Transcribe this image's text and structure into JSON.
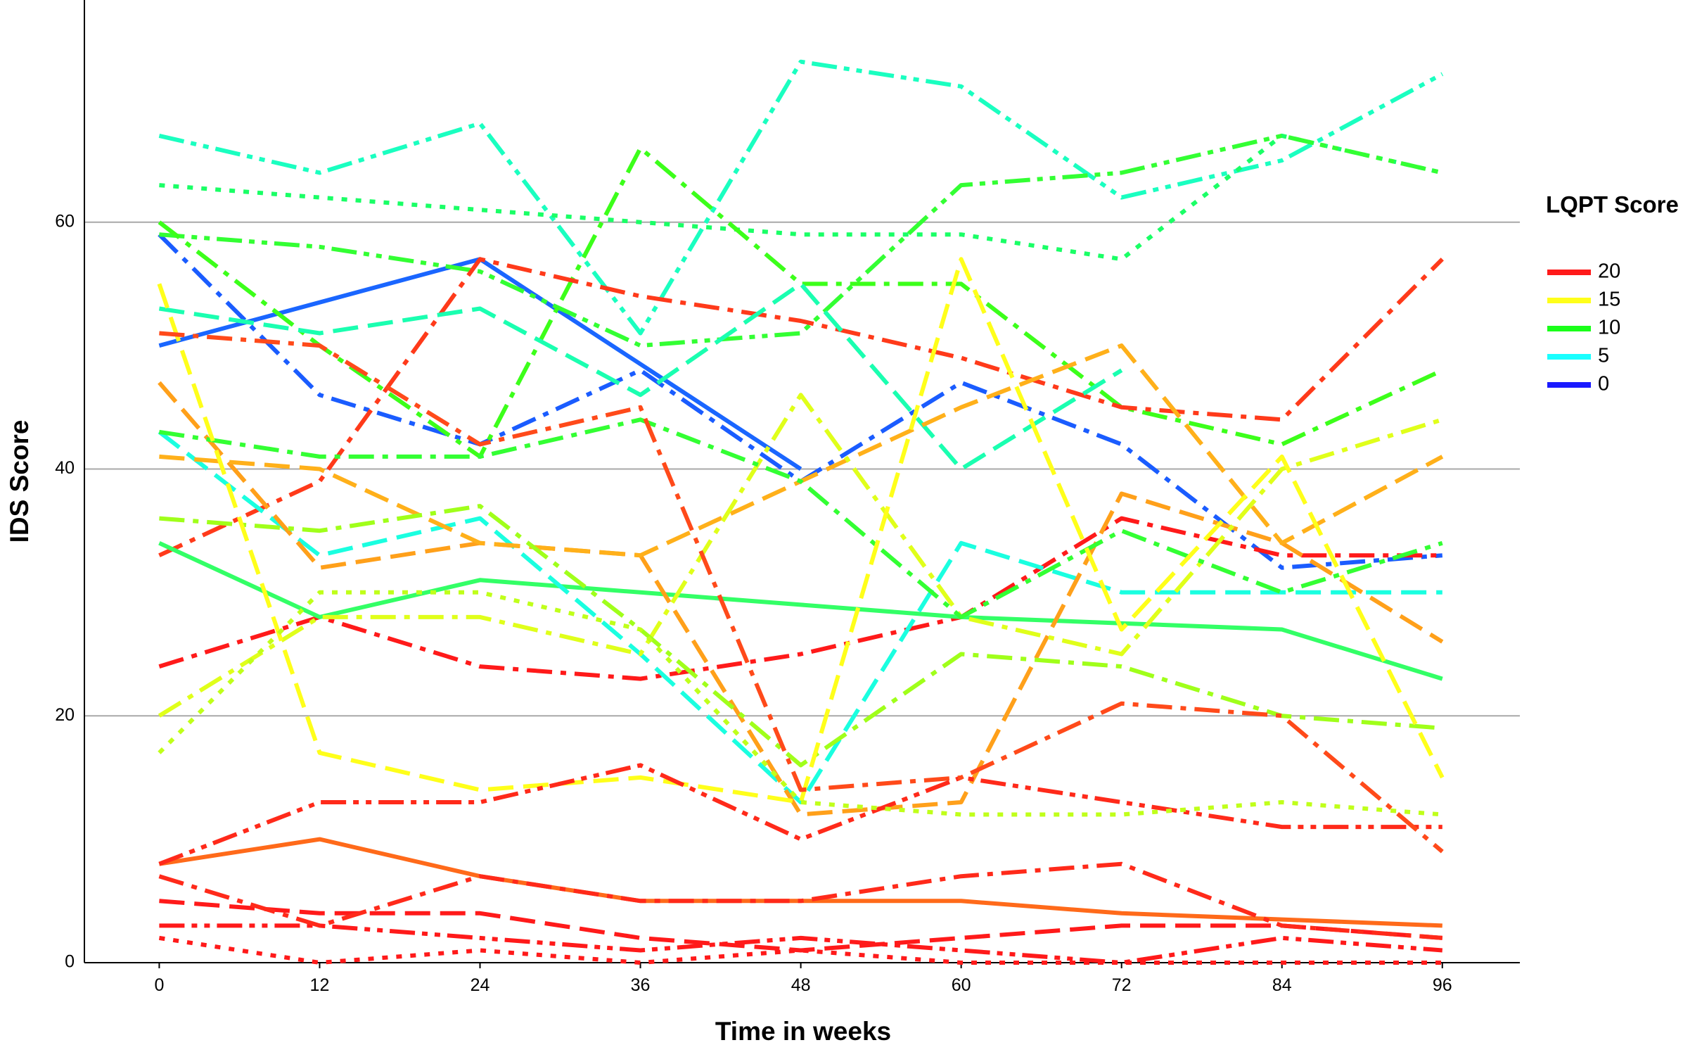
{
  "chart_data": {
    "type": "line",
    "x_label": "Time in weeks",
    "y_label": "IDS Score",
    "x": [
      0,
      12,
      24,
      36,
      48,
      60,
      72,
      84,
      96
    ],
    "xlim": [
      -5.6,
      101.8
    ],
    "ylim": [
      0,
      78
    ],
    "xticks": [
      0,
      12,
      24,
      36,
      48,
      60,
      72,
      84,
      96
    ],
    "yticks": [
      0,
      20,
      40,
      60
    ],
    "grid": true,
    "legend": {
      "position": "right",
      "title": "LQPT Score",
      "entries": [
        {
          "label": 20,
          "color": "#ff1a1a"
        },
        {
          "label": 15,
          "color": "#ffff1a"
        },
        {
          "label": 10,
          "color": "#1aff1a"
        },
        {
          "label": 5,
          "color": "#1affff"
        },
        {
          "label": 0,
          "color": "#1a1aff"
        }
      ]
    },
    "series": [
      {
        "color": "#1a66ff",
        "dash": "solid",
        "values": [
          50,
          53.5,
          57,
          48.5,
          40,
          null,
          null,
          null,
          null
        ]
      },
      {
        "color": "#1a5cff",
        "dash": "dashdot",
        "values": [
          59,
          46,
          42,
          48,
          39,
          47,
          42,
          32,
          33
        ]
      },
      {
        "color": "#1affc0",
        "dash": "dashdotdot",
        "values": [
          67,
          64,
          68,
          51,
          73,
          71,
          62,
          65,
          72
        ]
      },
      {
        "color": "#1aff66",
        "dash": "dot",
        "values": [
          63,
          62,
          61,
          60,
          59,
          59,
          57,
          67,
          64
        ]
      },
      {
        "color": "#33ff33",
        "dash": "dashdotdot",
        "values": [
          59,
          58,
          56,
          50,
          51,
          63,
          64,
          67,
          64
        ]
      },
      {
        "color": "#3cff1a",
        "dash": "dashdot",
        "values": [
          60,
          50,
          41,
          66,
          55,
          55,
          45,
          42,
          48
        ]
      },
      {
        "color": "#ff3a1a",
        "dash": "dashdot",
        "values": [
          33,
          39,
          57,
          54,
          52,
          49,
          45,
          44,
          57
        ]
      },
      {
        "color": "#ff1a1a",
        "dash": "dashdot",
        "values": [
          24,
          28,
          24,
          23,
          25,
          28,
          36,
          33,
          33
        ]
      },
      {
        "color": "#33ff66",
        "dash": "solid",
        "values": [
          34,
          28,
          31,
          30,
          29,
          28,
          27.5,
          27,
          23
        ]
      },
      {
        "color": "#ff6a1a",
        "dash": "solid",
        "values": [
          8,
          10,
          7,
          5,
          5,
          5,
          4,
          3.5,
          3
        ]
      },
      {
        "color": "#1affe0",
        "dash": "dash",
        "values": [
          43,
          33,
          36,
          25,
          13,
          34,
          30,
          30,
          30
        ]
      },
      {
        "color": "#1affb0",
        "dash": "dash",
        "values": [
          53,
          51,
          53,
          46,
          55,
          40,
          48,
          null,
          null
        ]
      },
      {
        "color": "#ffa01a",
        "dash": "dash",
        "values": [
          47,
          32,
          34,
          33,
          12,
          13,
          38,
          34,
          26
        ]
      },
      {
        "color": "#ffb01a",
        "dash": "dash",
        "values": [
          41,
          40,
          34,
          33,
          39,
          45,
          50,
          34,
          41
        ]
      },
      {
        "color": "#e0ff1a",
        "dash": "dashdot",
        "values": [
          20,
          28,
          28,
          25,
          46,
          28,
          25,
          40,
          44
        ]
      },
      {
        "color": "#a0ff1a",
        "dash": "dashdot",
        "values": [
          36,
          35,
          37,
          27,
          16,
          25,
          24,
          20,
          19
        ]
      },
      {
        "color": "#33ff33",
        "dash": "dashdot",
        "values": [
          43,
          41,
          41,
          44,
          39,
          28,
          35,
          30,
          34
        ]
      },
      {
        "color": "#ffff1a",
        "dash": "dash",
        "values": [
          55,
          17,
          14,
          15,
          13,
          57,
          27,
          41,
          15
        ]
      },
      {
        "color": "#ff2a1a",
        "dash": "dashdotdot",
        "values": [
          8,
          13,
          13,
          16,
          10,
          15,
          13,
          11,
          11
        ]
      },
      {
        "color": "#ff1a1a",
        "dash": "dash",
        "values": [
          5,
          4,
          4,
          2,
          1,
          2,
          3,
          3,
          2
        ]
      },
      {
        "color": "#ff1a1a",
        "dash": "dashdotdot",
        "values": [
          3,
          3,
          2,
          1,
          2,
          1,
          0,
          2,
          1
        ]
      },
      {
        "color": "#ff2a1a",
        "dash": "dashdot",
        "values": [
          7,
          3,
          7,
          5,
          5,
          7,
          8,
          3,
          2
        ]
      },
      {
        "color": "#ff1a1a",
        "dash": "dot",
        "values": [
          2,
          0,
          1,
          0,
          1,
          0,
          0,
          0,
          0
        ]
      },
      {
        "color": "#ff4a1a",
        "dash": "dashdot",
        "values": [
          51,
          50,
          42,
          45,
          14,
          15,
          21,
          20,
          9
        ]
      },
      {
        "color": "#c0ff1a",
        "dash": "dot",
        "values": [
          17,
          30,
          30,
          27,
          13,
          12,
          12,
          13,
          12
        ]
      }
    ]
  }
}
